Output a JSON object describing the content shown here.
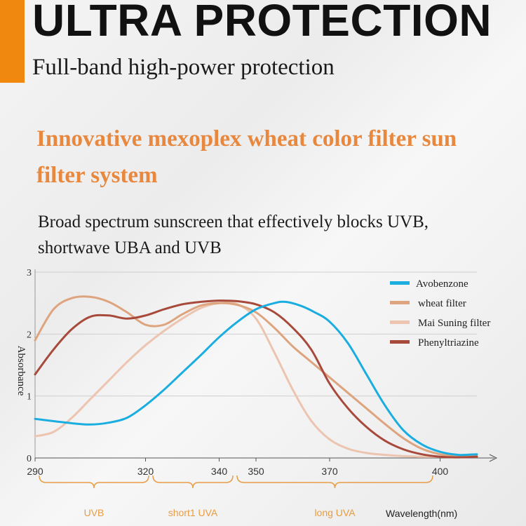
{
  "header": {
    "title": "ULTRA PROTECTION",
    "subtitle": "Full-band high-power protection"
  },
  "feature": {
    "title": "Innovative mexoplex wheat color filter sun filter system",
    "description": "Broad spectrum sunscreen that effectively blocks UVB, shortwave UBA and UVB"
  },
  "colors": {
    "accent": "#f0870f",
    "feature_title": "#e8883f",
    "band_label": "#e79c44"
  },
  "chart_data": {
    "type": "line",
    "title": "",
    "xlabel": "Wavelength(nm)",
    "ylabel": "Absorbance",
    "xlim": [
      290,
      410
    ],
    "ylim": [
      0,
      3
    ],
    "x_ticks": [
      "290",
      "320",
      "340",
      "350",
      "370",
      "400"
    ],
    "y_ticks": [
      "0",
      "1",
      "2",
      "3"
    ],
    "grid": "horizontal",
    "legend_position": "top-right",
    "bands": [
      {
        "label": "UVB",
        "range": [
          290,
          320
        ]
      },
      {
        "label": "short1 UVA",
        "range": [
          320,
          340
        ]
      },
      {
        "label": "long UVA",
        "range": [
          340,
          400
        ]
      }
    ],
    "series": [
      {
        "name": "Avobenzone",
        "color": "#1aaee0",
        "x": [
          290,
          300,
          305,
          310,
          315,
          320,
          325,
          330,
          335,
          340,
          345,
          350,
          355,
          358,
          362,
          366,
          370,
          375,
          380,
          385,
          390,
          395,
          400,
          405,
          410
        ],
        "y": [
          0.63,
          0.56,
          0.54,
          0.57,
          0.65,
          0.85,
          1.1,
          1.38,
          1.66,
          1.95,
          2.2,
          2.4,
          2.5,
          2.52,
          2.46,
          2.35,
          2.2,
          1.85,
          1.35,
          0.85,
          0.45,
          0.22,
          0.1,
          0.05,
          0.06
        ]
      },
      {
        "name": "wheat filter",
        "color": "#dda47e",
        "x": [
          290,
          295,
          300,
          305,
          310,
          315,
          320,
          325,
          330,
          335,
          340,
          345,
          350,
          355,
          360,
          365,
          370,
          375,
          380,
          385,
          390,
          395,
          400,
          405,
          410
        ],
        "y": [
          1.9,
          2.4,
          2.58,
          2.6,
          2.52,
          2.35,
          2.15,
          2.15,
          2.32,
          2.46,
          2.5,
          2.47,
          2.35,
          2.1,
          1.8,
          1.55,
          1.3,
          1.05,
          0.8,
          0.55,
          0.32,
          0.15,
          0.06,
          0.03,
          0.03
        ]
      },
      {
        "name": "Mai Suning filter",
        "color": "#ecc4b0",
        "x": [
          290,
          295,
          300,
          305,
          310,
          315,
          320,
          325,
          330,
          335,
          340,
          345,
          350,
          355,
          360,
          365,
          370,
          375,
          380,
          385,
          390,
          395,
          400,
          405,
          410
        ],
        "y": [
          0.35,
          0.42,
          0.65,
          0.95,
          1.25,
          1.55,
          1.82,
          2.05,
          2.25,
          2.42,
          2.5,
          2.48,
          2.25,
          1.7,
          1.1,
          0.6,
          0.3,
          0.15,
          0.08,
          0.05,
          0.03,
          0.02,
          0.02,
          0.02,
          0.02
        ]
      },
      {
        "name": "Phenyltriazine",
        "color": "#a84a3b",
        "x": [
          290,
          295,
          300,
          305,
          310,
          315,
          320,
          325,
          330,
          335,
          340,
          345,
          350,
          355,
          360,
          365,
          370,
          375,
          380,
          385,
          390,
          395,
          400,
          405,
          410
        ],
        "y": [
          1.35,
          1.75,
          2.08,
          2.28,
          2.3,
          2.25,
          2.3,
          2.4,
          2.48,
          2.52,
          2.54,
          2.53,
          2.48,
          2.35,
          2.1,
          1.75,
          1.2,
          0.8,
          0.5,
          0.28,
          0.14,
          0.06,
          0.02,
          0.01,
          0.02
        ]
      }
    ]
  }
}
